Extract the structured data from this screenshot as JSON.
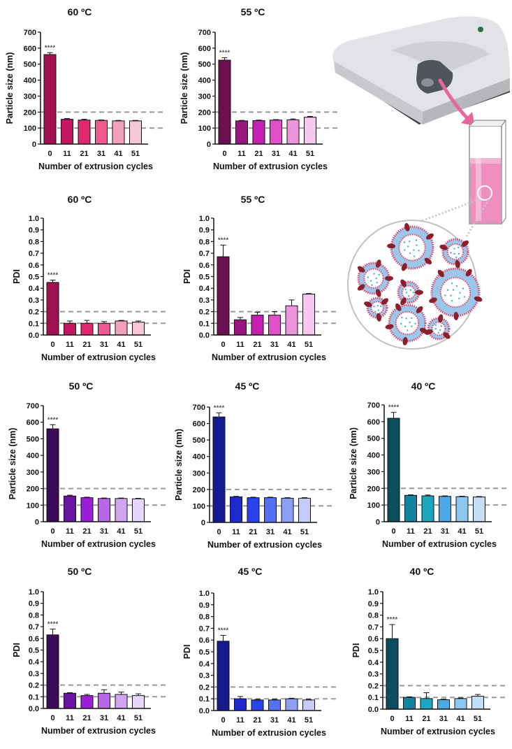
{
  "chart_data": [
    {
      "id": "p1",
      "type": "bar",
      "title": "60 ºC",
      "xlabel": "Number of extrusion cycles",
      "ylabel": "Particle size (nm)",
      "categories": [
        "0",
        "11",
        "21",
        "31",
        "41",
        "51"
      ],
      "values": [
        560,
        155,
        150,
        148,
        145,
        145
      ],
      "errors": [
        12,
        5,
        5,
        3,
        3,
        3
      ],
      "ylim": [
        0,
        700
      ],
      "yticks": [
        0,
        100,
        200,
        300,
        400,
        500,
        600,
        700
      ],
      "reference_lines": [
        100,
        200
      ],
      "significance": {
        "category": "0",
        "label": "****"
      },
      "colors": [
        "#a0124f",
        "#c41660",
        "#e0286e",
        "#ee5a90",
        "#f3a0bc",
        "#f7c7d6"
      ]
    },
    {
      "id": "p2",
      "type": "bar",
      "title": "55 ºC",
      "xlabel": "Number of extrusion cycles",
      "ylabel": "Particle size (nm)",
      "categories": [
        "0",
        "11",
        "21",
        "31",
        "41",
        "51"
      ],
      "values": [
        525,
        145,
        147,
        150,
        152,
        168
      ],
      "errors": [
        15,
        3,
        3,
        3,
        5,
        5
      ],
      "ylim": [
        0,
        700
      ],
      "yticks": [
        0,
        100,
        200,
        300,
        400,
        500,
        600,
        700
      ],
      "reference_lines": [
        100,
        200
      ],
      "significance": {
        "category": "0",
        "label": "****"
      },
      "colors": [
        "#6b0f4e",
        "#9a1781",
        "#c421b0",
        "#e050c8",
        "#ec94dc",
        "#f6c7ef"
      ]
    },
    {
      "id": "p3",
      "type": "bar",
      "title": "60 ºC",
      "xlabel": "Number of extrusion cycles",
      "ylabel": "PDI",
      "categories": [
        "0",
        "11",
        "21",
        "31",
        "41",
        "51"
      ],
      "values": [
        0.45,
        0.1,
        0.1,
        0.1,
        0.12,
        0.11
      ],
      "errors": [
        0.02,
        0.02,
        0.025,
        0.015,
        0.005,
        0.01
      ],
      "ylim": [
        0,
        1.0
      ],
      "yticks": [
        0.0,
        0.1,
        0.2,
        0.3,
        0.4,
        0.5,
        0.6,
        0.7,
        0.8,
        0.9,
        1.0
      ],
      "reference_lines": [
        0.1,
        0.2
      ],
      "significance": {
        "category": "0",
        "label": "****"
      },
      "colors": [
        "#a0124f",
        "#c41660",
        "#e0286e",
        "#ee5a90",
        "#f3a0bc",
        "#f7c7d6"
      ]
    },
    {
      "id": "p4",
      "type": "bar",
      "title": "55 ºC",
      "xlabel": "Number of extrusion cycles",
      "ylabel": "PDI",
      "categories": [
        "0",
        "11",
        "21",
        "31",
        "41",
        "51"
      ],
      "values": [
        0.67,
        0.13,
        0.17,
        0.17,
        0.25,
        0.35
      ],
      "errors": [
        0.1,
        0.02,
        0.025,
        0.03,
        0.05,
        0.005
      ],
      "ylim": [
        0,
        1.0
      ],
      "yticks": [
        0.0,
        0.1,
        0.2,
        0.3,
        0.4,
        0.5,
        0.6,
        0.7,
        0.8,
        0.9,
        1.0
      ],
      "reference_lines": [
        0.1,
        0.2
      ],
      "significance": {
        "category": "0",
        "label": "****"
      },
      "colors": [
        "#6b0f4e",
        "#9a1781",
        "#c421b0",
        "#e050c8",
        "#ec94dc",
        "#f6c7ef"
      ]
    },
    {
      "id": "p5",
      "type": "bar",
      "title": "50 ºC",
      "xlabel": "Number of extrusion cycles",
      "ylabel": "Particle size (nm)",
      "categories": [
        "0",
        "11",
        "21",
        "31",
        "41",
        "51"
      ],
      "values": [
        560,
        155,
        145,
        140,
        140,
        138
      ],
      "errors": [
        25,
        5,
        3,
        3,
        3,
        3
      ],
      "ylim": [
        0,
        700
      ],
      "yticks": [
        0,
        100,
        200,
        300,
        400,
        500,
        600,
        700
      ],
      "reference_lines": [
        100,
        200
      ],
      "significance": {
        "category": "0",
        "label": "****"
      },
      "colors": [
        "#3c0a57",
        "#6a14a3",
        "#9b1fd6",
        "#b766e6",
        "#d2a3ef",
        "#ead6f9"
      ]
    },
    {
      "id": "p6",
      "type": "bar",
      "title": "45 ºC",
      "xlabel": "Number of extrusion cycles",
      "ylabel": "Particle size (nm)",
      "categories": [
        "0",
        "11",
        "21",
        "31",
        "41",
        "51"
      ],
      "values": [
        640,
        155,
        150,
        150,
        147,
        147
      ],
      "errors": [
        25,
        3,
        3,
        3,
        3,
        3
      ],
      "ylim": [
        0,
        700
      ],
      "yticks": [
        0,
        100,
        200,
        300,
        400,
        500,
        600,
        700
      ],
      "reference_lines": [
        100,
        200
      ],
      "significance": {
        "category": "0",
        "label": "****"
      },
      "colors": [
        "#151a8e",
        "#1e2ad0",
        "#2a43ee",
        "#5670f2",
        "#8d9ef6",
        "#c4cdfa"
      ]
    },
    {
      "id": "p7",
      "type": "bar",
      "title": "40 ºC",
      "xlabel": "Number of extrusion cycles",
      "ylabel": "Particle size (nm)",
      "categories": [
        "0",
        "11",
        "21",
        "31",
        "41",
        "51"
      ],
      "values": [
        620,
        158,
        155,
        152,
        150,
        148
      ],
      "errors": [
        35,
        3,
        5,
        3,
        3,
        3
      ],
      "ylim": [
        0,
        700
      ],
      "yticks": [
        0,
        100,
        200,
        300,
        400,
        500,
        600,
        700
      ],
      "reference_lines": [
        100,
        200
      ],
      "significance": {
        "category": "0",
        "label": "****"
      },
      "colors": [
        "#0c4d5e",
        "#1384a0",
        "#1ba7c0",
        "#4da9e6",
        "#8cc6ef",
        "#c3def7"
      ]
    },
    {
      "id": "p8",
      "type": "bar",
      "title": "50 ºC",
      "xlabel": "Number of extrusion cycles",
      "ylabel": "PDI",
      "categories": [
        "0",
        "11",
        "21",
        "31",
        "41",
        "51"
      ],
      "values": [
        0.63,
        0.13,
        0.11,
        0.13,
        0.12,
        0.11
      ],
      "errors": [
        0.05,
        0.005,
        0.01,
        0.03,
        0.02,
        0.015
      ],
      "ylim": [
        0,
        1.0
      ],
      "yticks": [
        0.0,
        0.1,
        0.2,
        0.3,
        0.4,
        0.5,
        0.6,
        0.7,
        0.8,
        0.9,
        1.0
      ],
      "reference_lines": [
        0.1,
        0.2
      ],
      "significance": {
        "category": "0",
        "label": "****"
      },
      "colors": [
        "#3c0a57",
        "#6a14a3",
        "#9b1fd6",
        "#b766e6",
        "#d2a3ef",
        "#ead6f9"
      ]
    },
    {
      "id": "p9",
      "type": "bar",
      "title": "45 ºC",
      "xlabel": "Number of extrusion cycles",
      "ylabel": "PDI",
      "categories": [
        "0",
        "11",
        "21",
        "31",
        "41",
        "51"
      ],
      "values": [
        0.59,
        0.1,
        0.09,
        0.09,
        0.1,
        0.09
      ],
      "errors": [
        0.05,
        0.02,
        0.005,
        0.005,
        0.005,
        0.005
      ],
      "ylim": [
        0,
        1.0
      ],
      "yticks": [
        0.0,
        0.1,
        0.2,
        0.3,
        0.4,
        0.5,
        0.6,
        0.7,
        0.8,
        0.9,
        1.0
      ],
      "reference_lines": [
        0.1,
        0.2
      ],
      "significance": {
        "category": "0",
        "label": "****"
      },
      "colors": [
        "#151a8e",
        "#1e2ad0",
        "#2a43ee",
        "#5670f2",
        "#8d9ef6",
        "#c4cdfa"
      ]
    },
    {
      "id": "p10",
      "type": "bar",
      "title": "40 ºC",
      "xlabel": "Number of extrusion cycles",
      "ylabel": "PDI",
      "categories": [
        "0",
        "11",
        "21",
        "31",
        "41",
        "51"
      ],
      "values": [
        0.6,
        0.1,
        0.09,
        0.08,
        0.09,
        0.11
      ],
      "errors": [
        0.12,
        0.005,
        0.05,
        0.005,
        0.005,
        0.015
      ],
      "ylim": [
        0,
        1.0
      ],
      "yticks": [
        0.0,
        0.1,
        0.2,
        0.3,
        0.4,
        0.5,
        0.6,
        0.7,
        0.8,
        0.9,
        1.0
      ],
      "reference_lines": [
        0.1,
        0.2
      ],
      "significance": {
        "category": "0",
        "label": "****"
      },
      "colors": [
        "#0c4d5e",
        "#1384a0",
        "#1ba7c0",
        "#4da9e6",
        "#8cc6ef",
        "#c3def7"
      ]
    }
  ],
  "illustration": {
    "icons": [
      "zetasizer-instrument-icon",
      "arrow-icon",
      "cuvette-icon",
      "liposome-icon"
    ],
    "colors": {
      "instrument": "#d9dadd",
      "instrument_dark": "#3a3d43",
      "arrow": "#e8679b",
      "sample": "#ee8fbf",
      "membrane": "#e0446a",
      "protein": "#8b1f2c",
      "core": "#9cc7ea",
      "drug": "#3fb4c9"
    }
  }
}
